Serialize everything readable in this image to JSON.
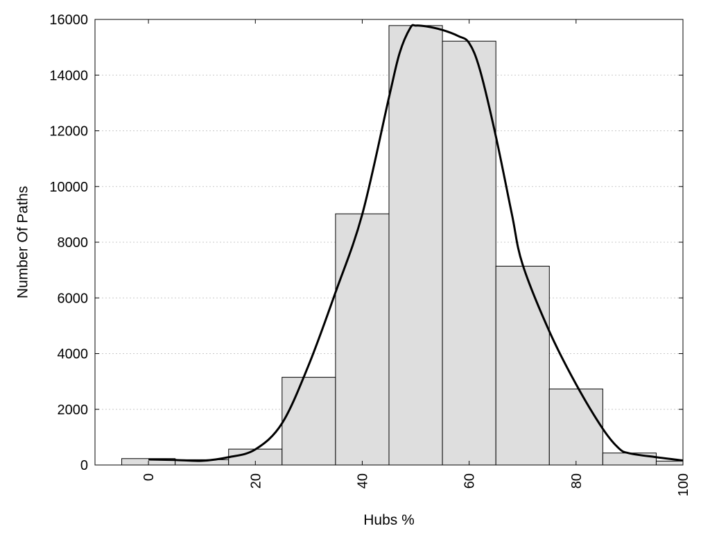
{
  "chart_data": {
    "type": "bar",
    "xlabel": "Hubs %",
    "ylabel": "Number Of Paths",
    "xlim": [
      -10,
      100
    ],
    "ylim": [
      0,
      16000
    ],
    "grid": {
      "y": true,
      "x": false,
      "style": "dotted"
    },
    "x_ticks": [
      0,
      20,
      40,
      60,
      80,
      100
    ],
    "y_ticks": [
      0,
      2000,
      4000,
      6000,
      8000,
      10000,
      12000,
      14000,
      16000
    ],
    "bins": [
      {
        "from": -5,
        "to": 5,
        "value": 230
      },
      {
        "from": 5,
        "to": 15,
        "value": 190
      },
      {
        "from": 15,
        "to": 25,
        "value": 570
      },
      {
        "from": 25,
        "to": 35,
        "value": 3150
      },
      {
        "from": 35,
        "to": 45,
        "value": 9020
      },
      {
        "from": 45,
        "to": 55,
        "value": 15780
      },
      {
        "from": 55,
        "to": 65,
        "value": 15220
      },
      {
        "from": 65,
        "to": 75,
        "value": 7140
      },
      {
        "from": 75,
        "to": 85,
        "value": 2730
      },
      {
        "from": 85,
        "to": 95,
        "value": 430
      },
      {
        "from": 95,
        "to": 100,
        "value": 140
      }
    ],
    "curve": {
      "points": [
        [
          0,
          200
        ],
        [
          5,
          180
        ],
        [
          10,
          150
        ],
        [
          15,
          280
        ],
        [
          20,
          560
        ],
        [
          25,
          1500
        ],
        [
          30,
          3600
        ],
        [
          35,
          6200
        ],
        [
          40,
          9000
        ],
        [
          45,
          13200
        ],
        [
          47,
          14800
        ],
        [
          49,
          15700
        ],
        [
          50,
          15780
        ],
        [
          52,
          15750
        ],
        [
          55,
          15620
        ],
        [
          58,
          15400
        ],
        [
          60,
          15150
        ],
        [
          62,
          14200
        ],
        [
          65,
          11800
        ],
        [
          68,
          9000
        ],
        [
          70,
          7200
        ],
        [
          75,
          4800
        ],
        [
          80,
          2900
        ],
        [
          85,
          1300
        ],
        [
          88,
          600
        ],
        [
          90,
          420
        ],
        [
          95,
          280
        ],
        [
          100,
          160
        ]
      ]
    },
    "colors": {
      "bar_fill": "#dedede",
      "bar_stroke": "#000000",
      "curve": "#000000",
      "grid": "#c8c8c8"
    }
  }
}
